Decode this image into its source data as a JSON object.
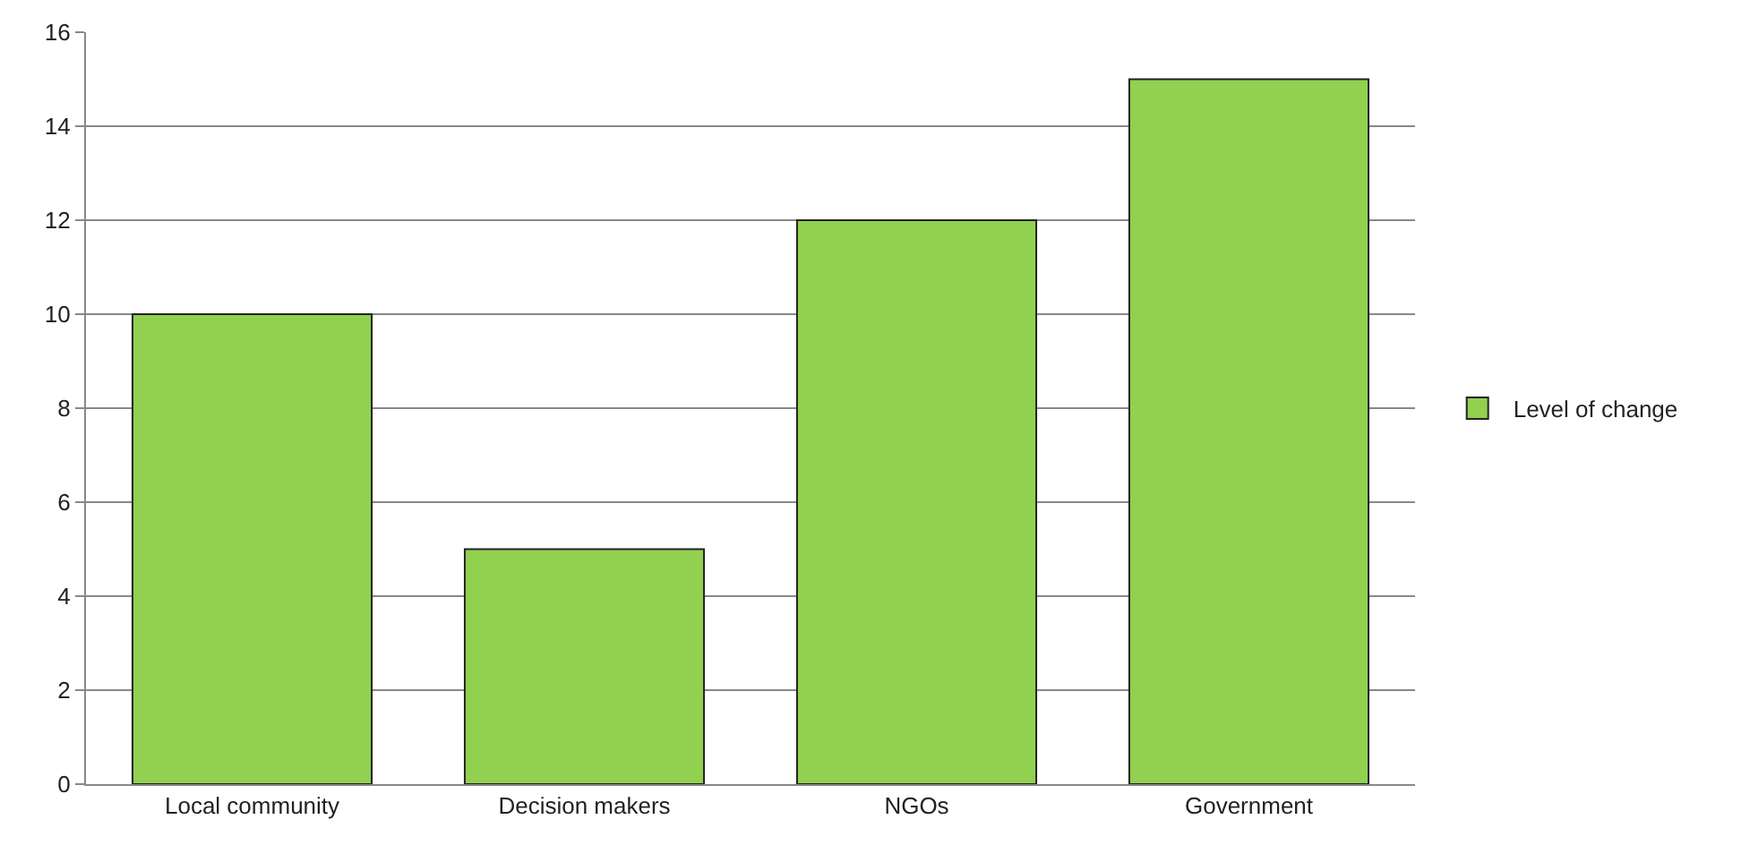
{
  "chart_data": {
    "type": "bar",
    "categories": [
      "Local community",
      "Decision makers",
      "NGOs",
      "Government"
    ],
    "series": [
      {
        "name": "Level of change",
        "color": "#92d050",
        "values": [
          10,
          5,
          12,
          15
        ]
      }
    ],
    "ylim": [
      0,
      16
    ],
    "yticks": [
      0,
      2,
      4,
      6,
      8,
      10,
      12,
      14,
      16
    ],
    "grid": "y",
    "legend": "right"
  }
}
